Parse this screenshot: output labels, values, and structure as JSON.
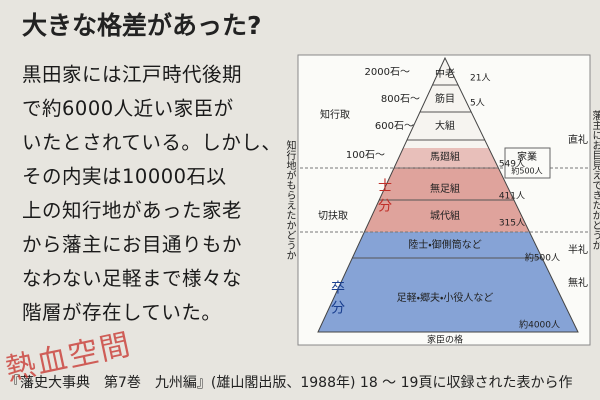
{
  "header": {
    "title": "大きな格差があった?"
  },
  "body": {
    "lines": [
      "黒田家には江戸時代後期",
      "で約6000人近い家臣が",
      "いたとされている。しかし、",
      "その内実は10000石以",
      "上の知行地があった家老",
      "から藩主にお目通りもか",
      "なわない足軽まで様々な",
      "階層が存在していた。"
    ]
  },
  "diagram": {
    "left_axis": "知行地がもらえたかどうか",
    "right_axis": "藩主にお目見えできたかどうか",
    "bottom_label": "家臣の格",
    "stipends": [
      "2000石～",
      "800石～",
      "600石～",
      "100石～"
    ],
    "groups": [
      "知行取",
      "切扶取"
    ],
    "classes": [
      "士分",
      "卒分"
    ],
    "tiers": [
      {
        "name": "中老",
        "count": "21人"
      },
      {
        "name": "筋目",
        "count": "5人"
      },
      {
        "name": "大組",
        "count": ""
      },
      {
        "name": "馬廻組",
        "count": "549人"
      },
      {
        "name": "無足組",
        "count": "411人"
      },
      {
        "name": "城代組",
        "count": "315人"
      },
      {
        "name": "陸士・御側筒など",
        "count": "約500人"
      },
      {
        "name": "足軽・郷夫・小役人など",
        "count": "約4000人"
      }
    ],
    "side": {
      "name": "家業",
      "count": "約500人"
    },
    "audience": [
      "直礼",
      "半礼",
      "無礼"
    ]
  },
  "footer": {
    "source": "『藩史大事典　第7巻　九州編』(雄山閣出版、1988年) 18 ～ 19頁に収録された表から作"
  },
  "stamp": "熱血空間"
}
